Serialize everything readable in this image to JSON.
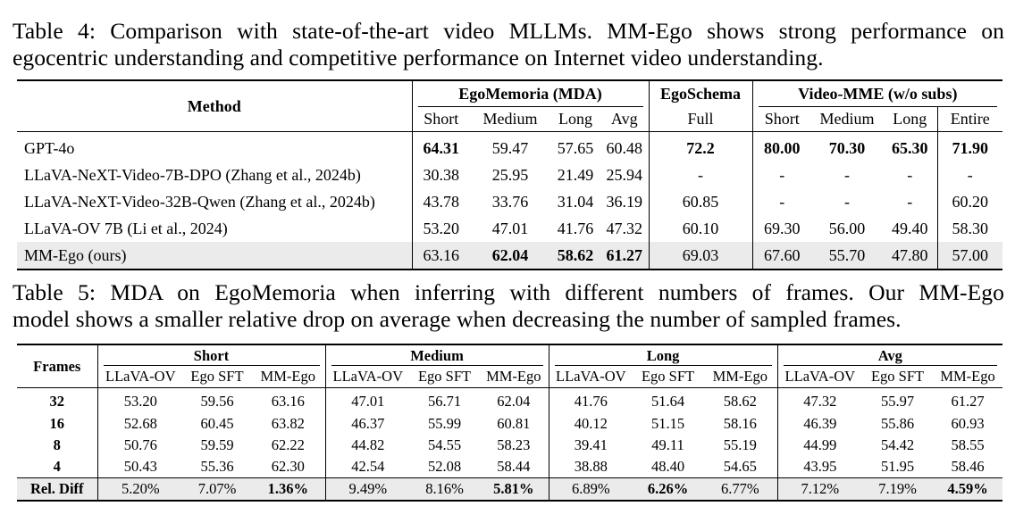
{
  "table4": {
    "caption_line1": "Table 4: Comparison with state-of-the-art video MLLMs. MM-Ego shows strong performance on",
    "caption_line2": "egocentric understanding and competitive performance on Internet video understanding.",
    "header": {
      "method": "Method",
      "groups": [
        "EgoMemoria (MDA)",
        "EgoSchema",
        "Video-MME (w/o subs)"
      ],
      "subcols": [
        "Short",
        "Medium",
        "Long",
        "Avg",
        "Full",
        "Short",
        "Medium",
        "Long",
        "Entire"
      ]
    },
    "rows": [
      {
        "method": "GPT-4o",
        "values": [
          "64.31",
          "59.47",
          "57.65",
          "60.48",
          "72.2",
          "80.00",
          "70.30",
          "65.30",
          "71.90"
        ],
        "bold": [
          true,
          false,
          false,
          false,
          true,
          true,
          true,
          true,
          true
        ]
      },
      {
        "method": "LLaVA-NeXT-Video-7B-DPO (Zhang et al., 2024b)",
        "values": [
          "30.38",
          "25.95",
          "21.49",
          "25.94",
          "-",
          "-",
          "-",
          "-",
          "-"
        ],
        "bold": [
          false,
          false,
          false,
          false,
          false,
          false,
          false,
          false,
          false
        ]
      },
      {
        "method": "LLaVA-NeXT-Video-32B-Qwen (Zhang et al., 2024b)",
        "values": [
          "43.78",
          "33.76",
          "31.04",
          "36.19",
          "60.85",
          "-",
          "-",
          "-",
          "60.20"
        ],
        "bold": [
          false,
          false,
          false,
          false,
          false,
          false,
          false,
          false,
          false
        ]
      },
      {
        "method": "LLaVA-OV 7B (Li et al., 2024)",
        "values": [
          "53.20",
          "47.01",
          "41.76",
          "47.32",
          "60.10",
          "69.30",
          "56.00",
          "49.40",
          "58.30"
        ],
        "bold": [
          false,
          false,
          false,
          false,
          false,
          false,
          false,
          false,
          false
        ]
      },
      {
        "method": "MM-Ego (ours)",
        "values": [
          "63.16",
          "62.04",
          "58.62",
          "61.27",
          "69.03",
          "67.60",
          "55.70",
          "47.80",
          "57.00"
        ],
        "bold": [
          false,
          true,
          true,
          true,
          false,
          false,
          false,
          false,
          false
        ]
      }
    ]
  },
  "table5": {
    "caption_line1": "Table 5: MDA on EgoMemoria when inferring with different numbers of frames. Our MM-Ego",
    "caption_line2": "model shows a smaller relative drop on average when decreasing the number of sampled frames.",
    "header": {
      "frames": "Frames",
      "groups": [
        "Short",
        "Medium",
        "Long",
        "Avg"
      ],
      "subcols": [
        "LLaVA-OV",
        "Ego SFT",
        "MM-Ego",
        "LLaVA-OV",
        "Ego SFT",
        "MM-Ego",
        "LLaVA-OV",
        "Ego SFT",
        "MM-Ego",
        "LLaVA-OV",
        "Ego SFT",
        "MM-Ego"
      ]
    },
    "rows": [
      {
        "frames": "32",
        "values": [
          "53.20",
          "59.56",
          "63.16",
          "47.01",
          "56.71",
          "62.04",
          "41.76",
          "51.64",
          "58.62",
          "47.32",
          "55.97",
          "61.27"
        ]
      },
      {
        "frames": "16",
        "values": [
          "52.68",
          "60.45",
          "63.82",
          "46.37",
          "55.99",
          "60.81",
          "40.12",
          "51.15",
          "58.16",
          "46.39",
          "55.86",
          "60.93"
        ]
      },
      {
        "frames": "8",
        "values": [
          "50.76",
          "59.59",
          "62.22",
          "44.82",
          "54.55",
          "58.23",
          "39.41",
          "49.11",
          "55.19",
          "44.99",
          "54.42",
          "58.55"
        ]
      },
      {
        "frames": "4",
        "values": [
          "50.43",
          "55.36",
          "62.30",
          "42.54",
          "52.08",
          "58.44",
          "38.88",
          "48.40",
          "54.65",
          "43.95",
          "51.95",
          "58.46"
        ]
      }
    ],
    "rel_diff": {
      "label": "Rel. Diff",
      "values": [
        "5.20%",
        "7.07%",
        "1.36%",
        "9.49%",
        "8.16%",
        "5.81%",
        "6.89%",
        "6.26%",
        "6.77%",
        "7.12%",
        "7.19%",
        "4.59%"
      ],
      "bold": [
        false,
        false,
        true,
        false,
        false,
        true,
        false,
        true,
        false,
        false,
        false,
        true
      ]
    }
  }
}
